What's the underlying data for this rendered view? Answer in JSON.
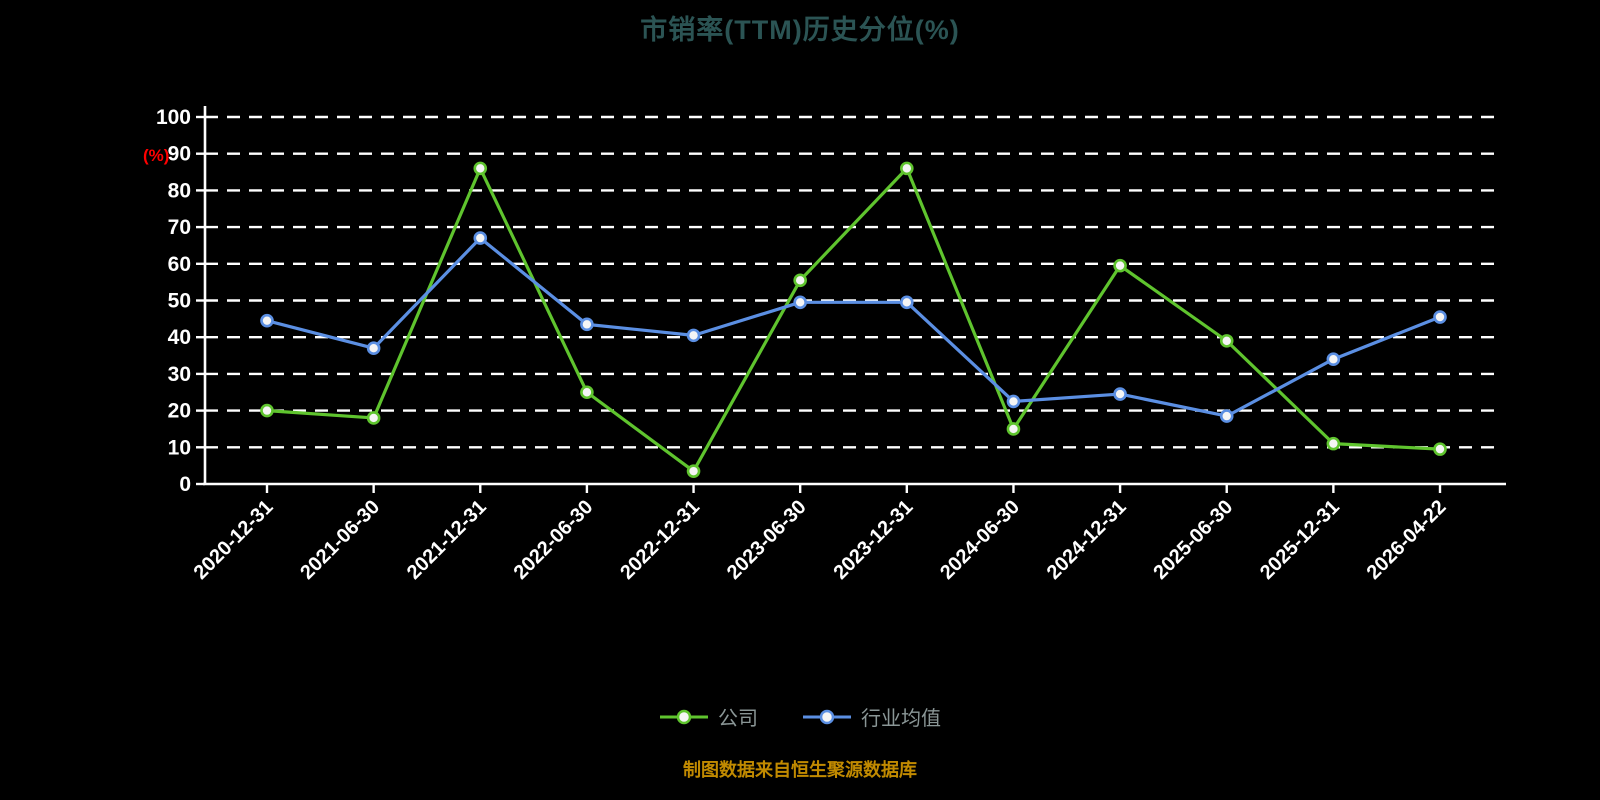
{
  "title": "市销率(TTM)历史分位(%)",
  "y_axis_label": "(%)",
  "footer": "制图数据来自恒生聚源数据库",
  "colors": {
    "background": "#000000",
    "title": "#2b5454",
    "axis": "#ffffff",
    "y_unit_label": "#ff0000",
    "legend_text": "#8a9696",
    "footer": "#c18a00",
    "company_series": "#5fc42e",
    "industry_series": "#5b8fe3",
    "marker_fill": "#f5f5f5"
  },
  "chart_data": {
    "type": "line",
    "title": "市销率(TTM)历史分位(%)",
    "xlabel": "",
    "ylabel": "(%)",
    "ylim": [
      0,
      100
    ],
    "y_ticks": [
      0,
      10,
      20,
      30,
      40,
      50,
      60,
      70,
      80,
      90,
      100
    ],
    "grid": "horizontal-dashed",
    "legend_position": "bottom",
    "categories": [
      "2020-12-31",
      "2021-06-30",
      "2021-12-31",
      "2022-06-30",
      "2022-12-31",
      "2023-06-30",
      "2023-12-31",
      "2024-06-30",
      "2024-12-31",
      "2025-06-30",
      "2025-12-31",
      "2026-04-22"
    ],
    "series": [
      {
        "name": "公司",
        "color": "#5fc42e",
        "values": [
          20,
          18,
          86,
          25,
          3.5,
          55.5,
          86,
          15,
          59.5,
          39,
          11,
          9.5
        ]
      },
      {
        "name": "行业均值",
        "color": "#5b8fe3",
        "values": [
          44.5,
          37,
          67,
          43.5,
          40.5,
          49.5,
          49.5,
          22.5,
          24.5,
          18.5,
          34,
          45.5
        ]
      }
    ]
  }
}
